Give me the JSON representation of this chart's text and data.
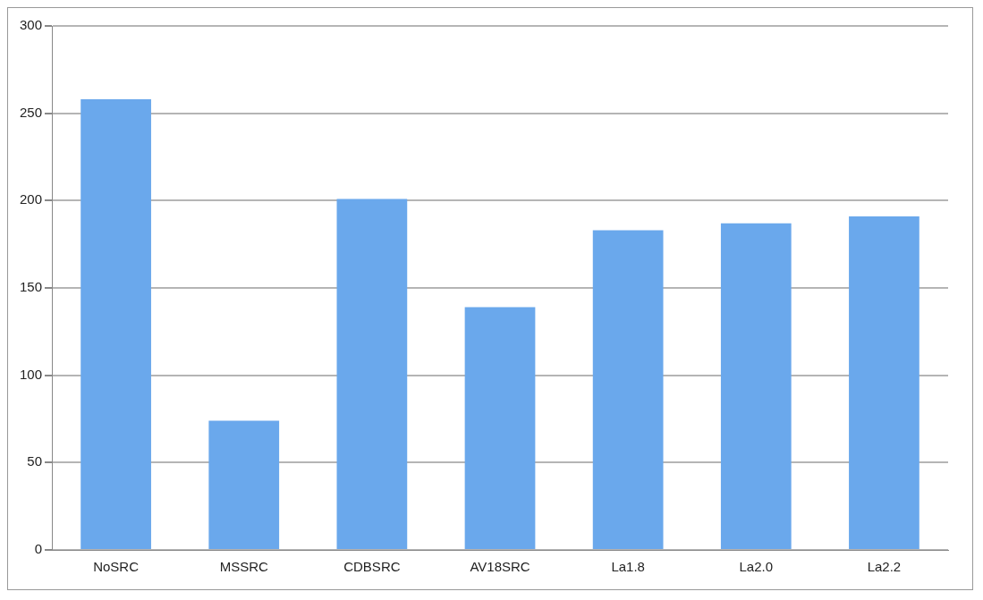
{
  "chart_data": {
    "type": "bar",
    "categories": [
      "NoSRC",
      "MSSRC",
      "CDBSRC",
      "AV18SRC",
      "La1.8",
      "La2.0",
      "La2.2"
    ],
    "values": [
      258,
      74,
      201,
      139,
      183,
      187,
      191
    ],
    "color": "#6aa8ec",
    "ylim": [
      0,
      300
    ],
    "yticks": [
      0,
      50,
      100,
      150,
      200,
      250,
      300
    ],
    "grid": "y",
    "legend": false
  }
}
